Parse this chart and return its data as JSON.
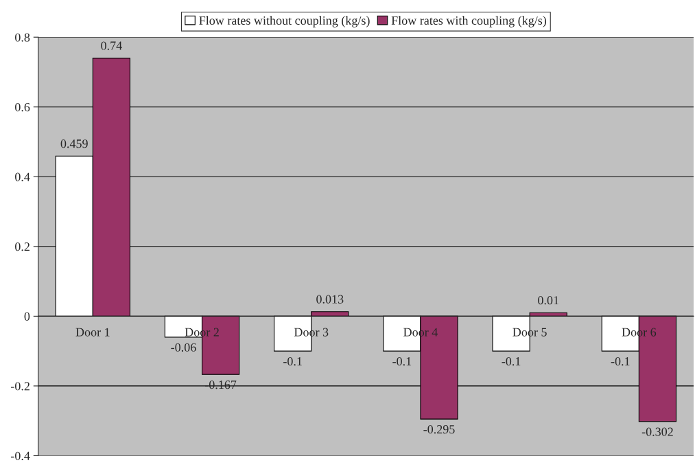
{
  "chart_data": {
    "type": "bar",
    "categories": [
      "Door 1",
      "Door 2",
      "Door 3",
      "Door 4",
      "Door 5",
      "Door 6"
    ],
    "series": [
      {
        "name": "Flow rates without coupling (kg/s)",
        "color": "#ffffff",
        "values": [
          0.459,
          -0.06,
          -0.1,
          -0.1,
          -0.1,
          -0.1
        ]
      },
      {
        "name": "Flow rates with coupling (kg/s)",
        "color": "#993366",
        "values": [
          0.74,
          -0.167,
          0.013,
          -0.295,
          0.01,
          -0.302
        ]
      }
    ],
    "ylim": [
      -0.4,
      0.8
    ],
    "yticks": [
      -0.4,
      -0.2,
      0,
      0.2,
      0.4,
      0.6,
      0.8
    ],
    "grid": "y",
    "legend": "top",
    "data_labels": true
  }
}
